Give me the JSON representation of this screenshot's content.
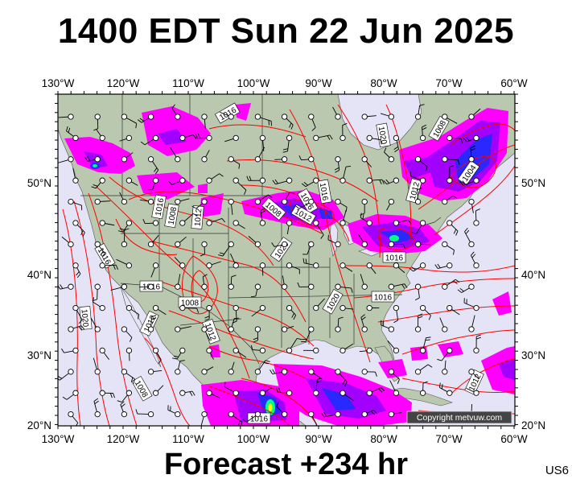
{
  "header": {
    "title": "1400 EDT Sun 22 Jun 2025"
  },
  "footer": {
    "forecast": "Forecast +234 hr",
    "region_code": "US6"
  },
  "map": {
    "lon_range": [
      -130,
      -60
    ],
    "lat_range": [
      20,
      57
    ],
    "lon_ticks": [
      "130°W",
      "120°W",
      "110°W",
      "100°W",
      "90°W",
      "80°W",
      "70°W",
      "60°W"
    ],
    "lat_ticks": [
      "50°N",
      "40°N",
      "30°N",
      "20°N"
    ],
    "copyright": "Copyright metvuw.com",
    "isobar_labels": [
      "1016",
      "1020",
      "1008",
      "1004",
      "1012",
      "1016",
      "1016",
      "1008",
      "1012",
      "1008",
      "1016",
      "1020",
      "1012",
      "1020",
      "1016",
      "1020",
      "1012",
      "1008",
      "1016",
      "1012",
      "1016",
      "1008",
      "1016",
      "1012",
      "1016"
    ],
    "colors": {
      "ocean": "#e4e4f6",
      "land": "#b9c8ae",
      "isobar": "#ff0000",
      "precip_light": "#ff00ff",
      "precip_mid": "#a200ff",
      "precip_heavy": "#2828ff",
      "precip_extreme": "#00ff80"
    }
  }
}
